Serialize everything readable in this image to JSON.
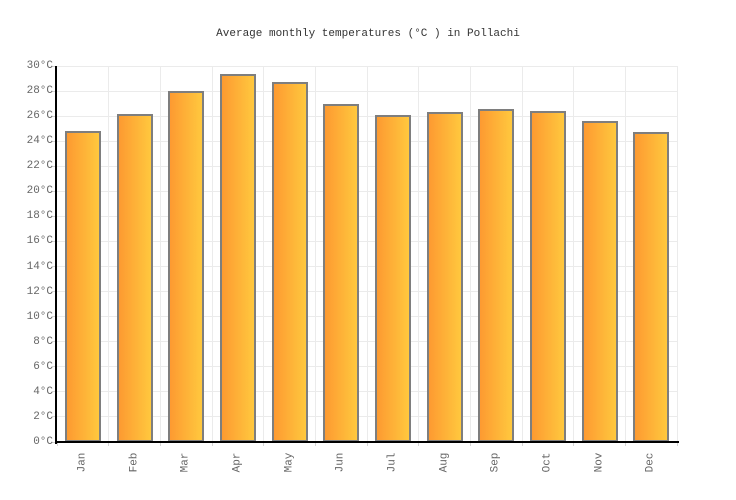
{
  "title": "Average monthly temperatures (°C ) in Pollachi",
  "chart_data": {
    "type": "bar",
    "title": "Average monthly temperatures (°C ) in Pollachi",
    "categories": [
      "Jan",
      "Feb",
      "Mar",
      "Apr",
      "May",
      "Jun",
      "Jul",
      "Aug",
      "Sep",
      "Oct",
      "Nov",
      "Dec"
    ],
    "values": [
      24.8,
      26.2,
      28.0,
      29.4,
      28.7,
      27.0,
      26.1,
      26.3,
      26.6,
      26.4,
      25.6,
      24.7
    ],
    "unit": "°C",
    "xlabel": "",
    "ylabel": "",
    "ylim": [
      0,
      30
    ],
    "ytick_step": 2,
    "ytick_suffix": "°C",
    "grid": true,
    "legend": false,
    "x_label_rotation": -90,
    "colors": {
      "bar_gradient_start": "#FD9A31",
      "bar_gradient_end": "#FFC83E",
      "bar_border": "#7E7E7E",
      "gridline": "#EBEBEB",
      "axis": "#000000",
      "tick": "#D5D5D5",
      "label": "#666666",
      "title": "#333333",
      "background": "#FFFFFF"
    }
  }
}
